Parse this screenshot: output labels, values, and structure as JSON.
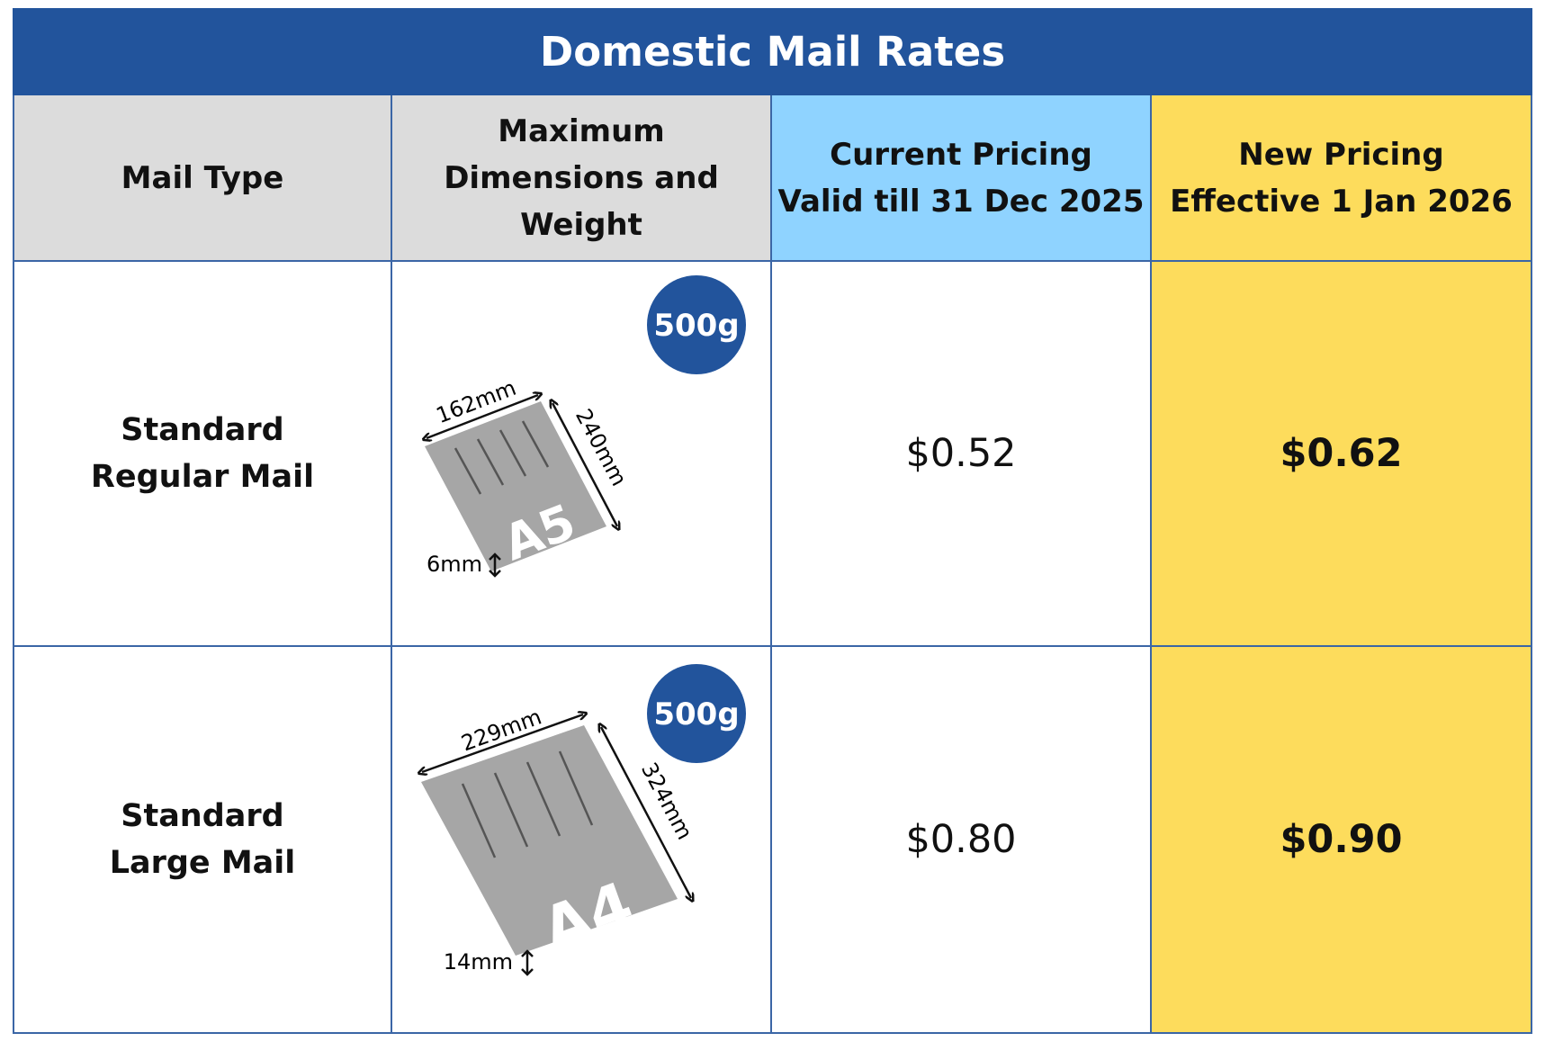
{
  "title": "Domestic Mail Rates",
  "colors": {
    "title_bg": "#22549c",
    "header_grey": "#dcdcdc",
    "header_blue": "#8fd3ff",
    "header_yellow": "#fddc5c",
    "envelope": "#a6a6a6",
    "badge": "#22549c"
  },
  "headers": {
    "mail_type": [
      "Mail Type"
    ],
    "dimensions": [
      "Maximum",
      "Dimensions and",
      "Weight"
    ],
    "current": [
      "Current Pricing",
      "Valid till 31 Dec 2025"
    ],
    "new": [
      "New Pricing",
      "Effective 1 Jan 2026"
    ]
  },
  "rows": [
    {
      "type": [
        "Standard",
        "Regular Mail"
      ],
      "weight": "500g",
      "size_label": "A5",
      "width": "162mm",
      "height": "240mm",
      "thickness": "6mm",
      "current_price": "$0.52",
      "new_price": "$0.62"
    },
    {
      "type": [
        "Standard",
        "Large Mail"
      ],
      "weight": "500g",
      "size_label": "A4",
      "width": "229mm",
      "height": "324mm",
      "thickness": "14mm",
      "current_price": "$0.80",
      "new_price": "$0.90"
    }
  ]
}
